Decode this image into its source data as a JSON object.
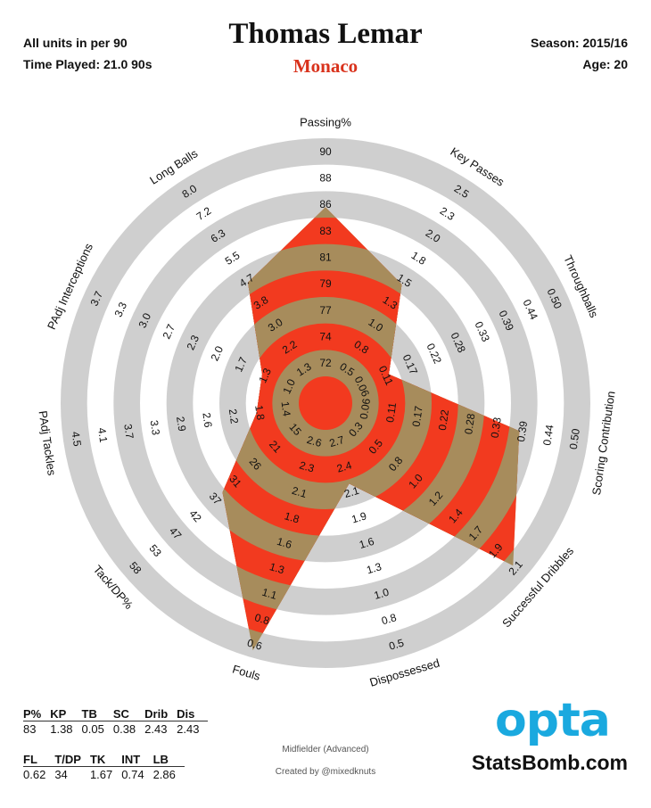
{
  "header": {
    "units": "All units in per 90",
    "time_played": "Time Played: 21.0 90s",
    "player": "Thomas Lemar",
    "team": "Monaco",
    "season": "Season: 2015/16",
    "age": "Age: 20"
  },
  "colors": {
    "ring_gray": "#cfcfcf",
    "fill_red": "#f23a1f",
    "fill_olive": "#a78c5c",
    "team_red": "#d9321c",
    "opta_blue": "#1aa9df"
  },
  "chart_data": {
    "type": "radar",
    "title": "Thomas Lemar",
    "axes": [
      {
        "label": "Passing%",
        "ticks": [
          "72",
          "74",
          "77",
          "79",
          "81",
          "83",
          "86",
          "88",
          "90"
        ],
        "value": 83,
        "fraction": 0.71
      },
      {
        "label": "Key Passes",
        "ticks": [
          "0.5",
          "0.8",
          "1.0",
          "1.3",
          "1.5",
          "1.8",
          "2.0",
          "2.3",
          "2.5"
        ],
        "value": 1.38,
        "fraction": 0.48
      },
      {
        "label": "Throughballs",
        "ticks": [
          "0.06",
          "0.11",
          "0.17",
          "0.22",
          "0.28",
          "0.33",
          "0.39",
          "0.44",
          "0.50"
        ],
        "value": 0.05,
        "fraction": 0.18
      },
      {
        "label": "Scoring Contribution",
        "ticks": [
          "0.06",
          "0.11",
          "0.17",
          "0.22",
          "0.28",
          "0.33",
          "0.39",
          "0.44",
          "0.50"
        ],
        "value": 0.38,
        "fraction": 0.71
      },
      {
        "label": "Successful Dribbles",
        "ticks": [
          "0.3",
          "0.5",
          "0.8",
          "1.0",
          "1.2",
          "1.4",
          "1.7",
          "1.9",
          "2.1"
        ],
        "value": 2.43,
        "fraction": 0.93
      },
      {
        "label": "Dispossessed",
        "ticks": [
          "2.7",
          "2.4",
          "2.1",
          "1.9",
          "1.6",
          "1.3",
          "1.0",
          "0.8",
          "0.5"
        ],
        "value": 2.43,
        "fraction": 0.24
      },
      {
        "label": "Fouls",
        "ticks": [
          "2.6",
          "2.3",
          "2.1",
          "1.8",
          "1.6",
          "1.3",
          "1.1",
          "0.8",
          "0.6"
        ],
        "value": 0.62,
        "fraction": 0.97
      },
      {
        "label": "Tack/DP%",
        "ticks": [
          "15",
          "21",
          "26",
          "31",
          "37",
          "42",
          "47",
          "53",
          "58"
        ],
        "value": 34,
        "fraction": 0.46
      },
      {
        "label": "PAdj Tackles",
        "ticks": [
          "1.4",
          "1.8",
          "2.2",
          "2.6",
          "2.9",
          "3.3",
          "3.7",
          "4.1",
          "4.5"
        ],
        "value": 1.67,
        "fraction": 0.18
      },
      {
        "label": "PAdj Interceptions",
        "ticks": [
          "1.0",
          "1.3",
          "1.7",
          "2.0",
          "2.3",
          "2.7",
          "3.0",
          "3.3",
          "3.7"
        ],
        "value": 0.74,
        "fraction": 0.18
      },
      {
        "label": "Long Balls",
        "ticks": [
          "1.3",
          "2.2",
          "3.0",
          "3.8",
          "4.7",
          "5.5",
          "6.3",
          "7.2",
          "8.0"
        ],
        "value": 2.86,
        "fraction": 0.49
      }
    ]
  },
  "stats_table_1": {
    "headers": [
      "P%",
      "KP",
      "TB",
      "SC",
      "Drib",
      "Dis"
    ],
    "values": [
      "83",
      "1.38",
      "0.05",
      "0.38",
      "2.43",
      "2.43"
    ]
  },
  "stats_table_2": {
    "headers": [
      "FL",
      "T/DP",
      "TK",
      "INT",
      "LB"
    ],
    "values": [
      "0.62",
      "34",
      "1.67",
      "0.74",
      "2.86"
    ]
  },
  "footer": {
    "role": "Midfielder (Advanced)",
    "credit": "Created by @mixedknuts",
    "opta": "opta",
    "site": "StatsBomb.com"
  }
}
